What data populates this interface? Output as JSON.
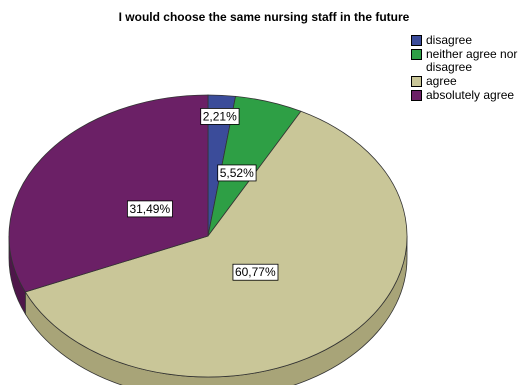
{
  "chart_data": {
    "type": "pie",
    "title": "I would choose the same nursing staff in the future",
    "categories": [
      "disagree",
      "neither agree nor disagree",
      "agree",
      "absolutely agree"
    ],
    "values": [
      2.21,
      5.52,
      60.77,
      31.49
    ],
    "value_labels": [
      "2,21%",
      "5,52%",
      "60,77%",
      "31,49%"
    ],
    "colors": [
      "#3b4c9a",
      "#2e9f45",
      "#c9c698",
      "#6b2066"
    ],
    "side_colors": [
      "#2b3870",
      "#1f7131",
      "#a8a478",
      "#4e164a"
    ],
    "legend_position": "right"
  }
}
